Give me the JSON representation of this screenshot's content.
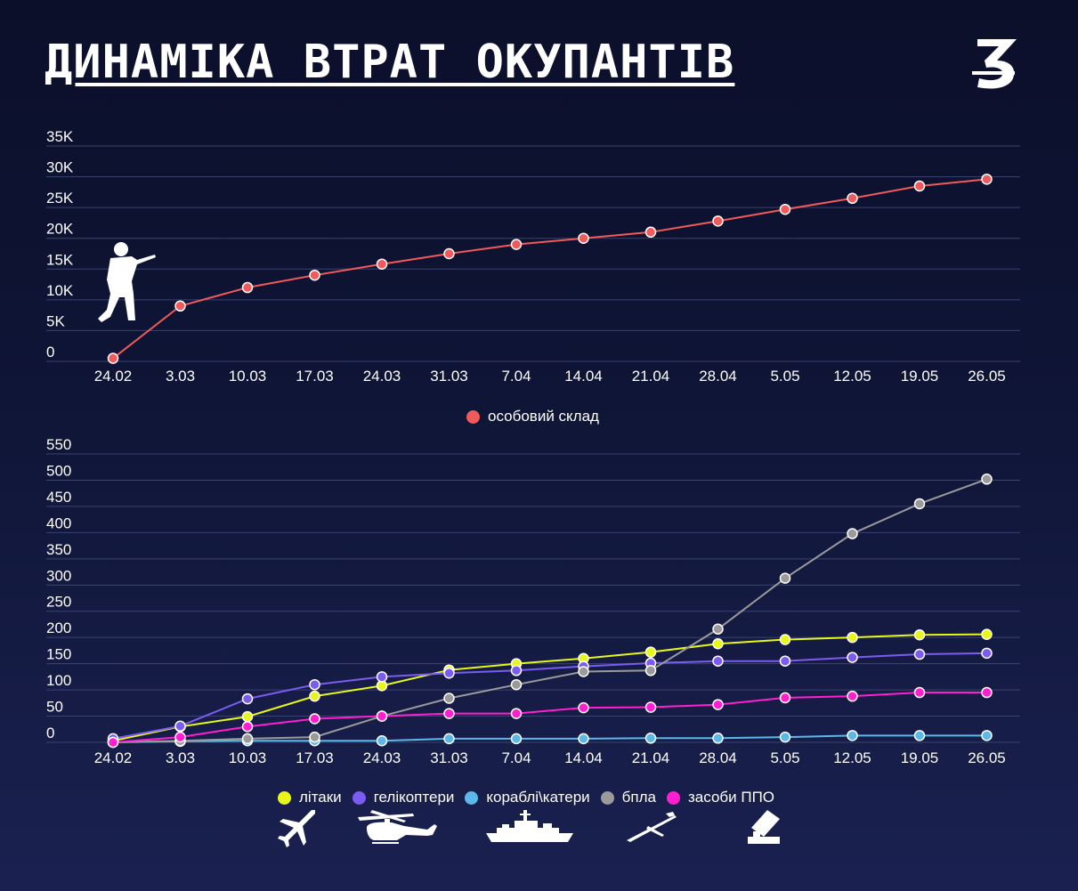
{
  "title": "ДИНАМІКА ВТРАТ ОКУПАНТІВ",
  "logo": "З",
  "chart_data": [
    {
      "type": "line",
      "categories": [
        "24.02",
        "3.03",
        "10.03",
        "17.03",
        "24.03",
        "31.03",
        "7.04",
        "14.04",
        "21.04",
        "28.04",
        "5.05",
        "12.05",
        "19.05",
        "26.05"
      ],
      "ylim": [
        0,
        35000
      ],
      "yticks": [
        0,
        5000,
        10000,
        15000,
        20000,
        25000,
        30000,
        35000
      ],
      "ytick_labels": [
        "0",
        "5K",
        "10K",
        "15K",
        "20K",
        "25K",
        "30K",
        "35K"
      ],
      "grid": true,
      "legend_position": "bottom",
      "series": [
        {
          "name": "особовий склад",
          "color": "#f05a5a",
          "values": [
            500,
            9000,
            12000,
            14000,
            15800,
            17500,
            19000,
            20000,
            21000,
            22800,
            24700,
            26500,
            28500,
            29600
          ]
        }
      ]
    },
    {
      "type": "line",
      "categories": [
        "24.02",
        "3.03",
        "10.03",
        "17.03",
        "24.03",
        "31.03",
        "7.04",
        "14.04",
        "21.04",
        "28.04",
        "5.05",
        "12.05",
        "19.05",
        "26.05"
      ],
      "ylim": [
        0,
        550
      ],
      "yticks": [
        0,
        50,
        100,
        150,
        200,
        250,
        300,
        350,
        400,
        450,
        500,
        550
      ],
      "grid": true,
      "legend_position": "bottom",
      "series": [
        {
          "name": "літаки",
          "color": "#e8f71a",
          "values": [
            3,
            30,
            49,
            88,
            108,
            138,
            150,
            160,
            172,
            188,
            196,
            200,
            205,
            206
          ]
        },
        {
          "name": "гелікоптери",
          "color": "#7b5cf0",
          "values": [
            7,
            31,
            83,
            110,
            125,
            132,
            137,
            145,
            151,
            155,
            155,
            162,
            168,
            170
          ]
        },
        {
          "name": "кораблі\\катери",
          "color": "#5bb8e8",
          "values": [
            0,
            2,
            3,
            3,
            3,
            7,
            7,
            7,
            8,
            8,
            10,
            13,
            13,
            13
          ]
        },
        {
          "name": "бпла",
          "color": "#9a9a9a",
          "values": [
            0,
            3,
            7,
            10,
            50,
            84,
            110,
            135,
            137,
            216,
            313,
            398,
            455,
            502
          ]
        },
        {
          "name": "засоби ППО",
          "color": "#ff1fd0",
          "values": [
            0,
            10,
            30,
            45,
            50,
            55,
            55,
            66,
            67,
            72,
            85,
            88,
            95,
            95
          ]
        }
      ]
    }
  ]
}
